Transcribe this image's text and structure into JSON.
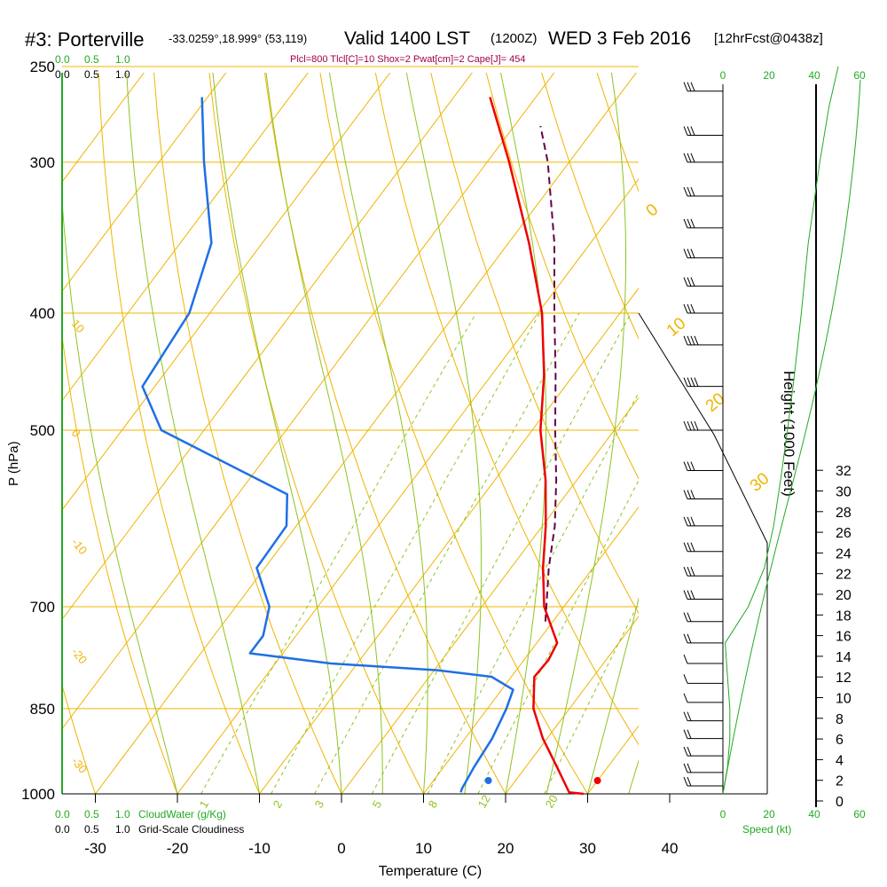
{
  "header": {
    "station": "#3: Porterville",
    "coords": "-33.0259°,18.999° (53,119)",
    "valid": "Valid 1400 LST",
    "utc": "(1200Z)",
    "date": "WED 3 Feb 2016",
    "fcst": "[12hrFcst@0438z]",
    "indices": "Plcl=800 Tlcl[C]=10 Shox=2 Pwat[cm]=2 Cape[J]= 454"
  },
  "labels": {
    "cloudwater_top": [
      "0.0",
      "0.5",
      "1.0"
    ],
    "cloudiness_top": [
      "0.0",
      "0.5",
      "1.0"
    ],
    "cloudwater_bottom": [
      "0.0",
      "0.5",
      "1.0"
    ],
    "cloudwater_title": "CloudWater (g/Kg)",
    "cloudiness_bottom": [
      "0.0",
      "0.5",
      "1.0"
    ],
    "cloudiness_title": "Grid-Scale Cloudiness",
    "speed_title": "Speed (kt)",
    "speed_ticks": [
      "0",
      "20",
      "40",
      "60"
    ],
    "height_title": "Height (1000 Feet)",
    "height_ticks": [
      "0",
      "2",
      "4",
      "6",
      "8",
      "10",
      "12",
      "14",
      "16",
      "18",
      "20",
      "22",
      "24",
      "26",
      "28",
      "30",
      "32"
    ]
  },
  "chart_data": {
    "type": "skew-t",
    "xlabel": "Temperature (C)",
    "ylabel": "P (hPa)",
    "xlim": [
      -35,
      45
    ],
    "pressure_ticks": [
      250,
      300,
      400,
      500,
      700,
      850,
      1000
    ],
    "temp_ticks": [
      -30,
      -20,
      -10,
      0,
      10,
      20,
      30,
      40
    ],
    "isotherm_labels": [
      10,
      0,
      -10,
      -20,
      -30
    ],
    "dry_adiabat_labels": [
      0,
      10,
      20,
      30
    ],
    "mixing_ratio_labels": [
      "1",
      "2",
      "3",
      "5",
      "8",
      "12",
      "20"
    ],
    "temperature": {
      "color": "#ee0000",
      "points": [
        {
          "p": 1000,
          "t": 29.5
        },
        {
          "p": 997,
          "t": 27.6
        },
        {
          "p": 950,
          "t": 23.8
        },
        {
          "p": 900,
          "t": 19.5
        },
        {
          "p": 850,
          "t": 15.6
        },
        {
          "p": 800,
          "t": 12.8
        },
        {
          "p": 775,
          "t": 13.0
        },
        {
          "p": 750,
          "t": 12.5
        },
        {
          "p": 700,
          "t": 7.6
        },
        {
          "p": 650,
          "t": 3.9
        },
        {
          "p": 600,
          "t": 0.4
        },
        {
          "p": 550,
          "t": -3.8
        },
        {
          "p": 500,
          "t": -9.0
        },
        {
          "p": 450,
          "t": -13.6
        },
        {
          "p": 400,
          "t": -19.5
        },
        {
          "p": 350,
          "t": -27.5
        },
        {
          "p": 300,
          "t": -37.3
        },
        {
          "p": 265,
          "t": -45.6
        }
      ]
    },
    "dewpoint": {
      "color": "#1e6fe6",
      "points": [
        {
          "p": 997,
          "t": 14.4
        },
        {
          "p": 990,
          "t": 14.2
        },
        {
          "p": 950,
          "t": 13.7
        },
        {
          "p": 900,
          "t": 13.3
        },
        {
          "p": 850,
          "t": 12.3
        },
        {
          "p": 820,
          "t": 11.4
        },
        {
          "p": 800,
          "t": 7.6
        },
        {
          "p": 790,
          "t": 0.4
        },
        {
          "p": 780,
          "t": -13.2
        },
        {
          "p": 765,
          "t": -24.0
        },
        {
          "p": 740,
          "t": -24.0
        },
        {
          "p": 700,
          "t": -25.9
        },
        {
          "p": 650,
          "t": -31.0
        },
        {
          "p": 600,
          "t": -31.2
        },
        {
          "p": 565,
          "t": -34.0
        },
        {
          "p": 500,
          "t": -55.2
        },
        {
          "p": 460,
          "t": -61.5
        },
        {
          "p": 400,
          "t": -62.5
        },
        {
          "p": 350,
          "t": -66.2
        },
        {
          "p": 300,
          "t": -74.5
        },
        {
          "p": 265,
          "t": -80.7
        }
      ]
    },
    "parcel": {
      "color": "#660044",
      "points": [
        {
          "p": 720,
          "t": 9.1
        },
        {
          "p": 650,
          "t": 4.6
        },
        {
          "p": 600,
          "t": 1.5
        },
        {
          "p": 550,
          "t": -2.5
        },
        {
          "p": 500,
          "t": -7.2
        },
        {
          "p": 450,
          "t": -12.2
        },
        {
          "p": 400,
          "t": -18.0
        },
        {
          "p": 350,
          "t": -24.4
        },
        {
          "p": 300,
          "t": -32.6
        },
        {
          "p": 280,
          "t": -36.8
        }
      ]
    },
    "surface_markers": [
      {
        "label": "T",
        "p": 990,
        "t": 31.2,
        "color": "#ee0000"
      },
      {
        "label": "Td",
        "p": 990,
        "t": 17.9,
        "color": "#1e6fe6"
      }
    ],
    "wind_barbs": [
      {
        "p": 262,
        "spd": 30
      },
      {
        "p": 285,
        "spd": 30
      },
      {
        "p": 300,
        "spd": 30
      },
      {
        "p": 320,
        "spd": 30
      },
      {
        "p": 340,
        "spd": 30
      },
      {
        "p": 360,
        "spd": 30
      },
      {
        "p": 380,
        "spd": 30
      },
      {
        "p": 400,
        "spd": 30
      },
      {
        "p": 425,
        "spd": 35
      },
      {
        "p": 460,
        "spd": 35
      },
      {
        "p": 500,
        "spd": 35
      },
      {
        "p": 540,
        "spd": 25
      },
      {
        "p": 570,
        "spd": 25
      },
      {
        "p": 600,
        "spd": 25
      },
      {
        "p": 630,
        "spd": 25
      },
      {
        "p": 660,
        "spd": 25
      },
      {
        "p": 690,
        "spd": 25
      },
      {
        "p": 720,
        "spd": 20
      },
      {
        "p": 750,
        "spd": 15
      },
      {
        "p": 780,
        "spd": 10
      },
      {
        "p": 810,
        "spd": 10
      },
      {
        "p": 840,
        "spd": 10
      },
      {
        "p": 870,
        "spd": 15
      },
      {
        "p": 900,
        "spd": 15
      },
      {
        "p": 930,
        "spd": 15
      },
      {
        "p": 960,
        "spd": 15
      },
      {
        "p": 985,
        "spd": 15
      }
    ],
    "wind_speed_profile": [
      {
        "p": 1000,
        "spd": 0
      },
      {
        "p": 950,
        "spd": 2
      },
      {
        "p": 900,
        "spd": 3
      },
      {
        "p": 850,
        "spd": 3
      },
      {
        "p": 800,
        "spd": 2
      },
      {
        "p": 750,
        "spd": 1
      },
      {
        "p": 700,
        "spd": 11
      },
      {
        "p": 650,
        "spd": 18
      },
      {
        "p": 600,
        "spd": 22
      },
      {
        "p": 550,
        "spd": 25
      },
      {
        "p": 500,
        "spd": 28
      },
      {
        "p": 450,
        "spd": 31
      },
      {
        "p": 400,
        "spd": 34
      },
      {
        "p": 350,
        "spd": 37
      },
      {
        "p": 300,
        "spd": 42
      },
      {
        "p": 270,
        "spd": 46
      },
      {
        "p": 250,
        "spd": 50
      }
    ]
  }
}
